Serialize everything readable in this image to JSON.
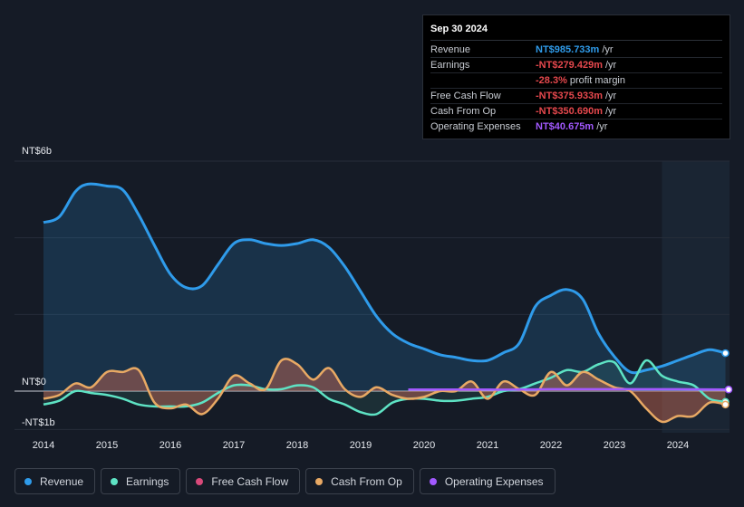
{
  "tooltip": {
    "date": "Sep 30 2024",
    "rows": [
      {
        "label": "Revenue",
        "value": "NT$985.733m",
        "unit": "/yr",
        "color": "#2f9bea"
      },
      {
        "label": "Earnings",
        "value": "-NT$279.429m",
        "unit": "/yr",
        "color": "#e5484d"
      },
      {
        "label": "",
        "value": "-28.3%",
        "unit": "profit margin",
        "color": "#e5484d"
      },
      {
        "label": "Free Cash Flow",
        "value": "-NT$375.933m",
        "unit": "/yr",
        "color": "#e5484d"
      },
      {
        "label": "Cash From Op",
        "value": "-NT$350.690m",
        "unit": "/yr",
        "color": "#e5484d"
      },
      {
        "label": "Operating Expenses",
        "value": "NT$40.675m",
        "unit": "/yr",
        "color": "#a259ff"
      }
    ]
  },
  "legend": [
    {
      "label": "Revenue",
      "color": "#2f9bea"
    },
    {
      "label": "Earnings",
      "color": "#5ee3c4"
    },
    {
      "label": "Free Cash Flow",
      "color": "#d9497a"
    },
    {
      "label": "Cash From Op",
      "color": "#e8a964"
    },
    {
      "label": "Operating Expenses",
      "color": "#a259ff"
    }
  ],
  "chart_data": {
    "type": "line",
    "title": "",
    "ylim": [
      -1,
      6
    ],
    "y_tick_labels": [
      "NT$6b",
      "NT$0",
      "-NT$1b"
    ],
    "x_tick_labels": [
      "2014",
      "2015",
      "2016",
      "2017",
      "2018",
      "2019",
      "2020",
      "2021",
      "2022",
      "2023",
      "2024"
    ],
    "x_domain": [
      2014,
      2024.8
    ],
    "highlight_from": 2023.75,
    "series": [
      {
        "name": "Revenue",
        "color": "#2f9bea",
        "x": [
          2014,
          2014.25,
          2014.5,
          2014.7,
          2015,
          2015.25,
          2015.5,
          2015.75,
          2016,
          2016.25,
          2016.5,
          2016.75,
          2017,
          2017.25,
          2017.5,
          2017.75,
          2018,
          2018.25,
          2018.5,
          2018.75,
          2019,
          2019.25,
          2019.5,
          2019.75,
          2020,
          2020.25,
          2020.5,
          2020.75,
          2021,
          2021.25,
          2021.5,
          2021.75,
          2022,
          2022.25,
          2022.5,
          2022.75,
          2023,
          2023.25,
          2023.5,
          2023.75,
          2024,
          2024.25,
          2024.5,
          2024.75
        ],
        "y": [
          4.4,
          4.55,
          5.2,
          5.4,
          5.35,
          5.25,
          4.6,
          3.8,
          3.05,
          2.7,
          2.75,
          3.3,
          3.85,
          3.95,
          3.85,
          3.8,
          3.85,
          3.95,
          3.75,
          3.25,
          2.6,
          1.95,
          1.5,
          1.25,
          1.1,
          0.95,
          0.88,
          0.8,
          0.8,
          1.0,
          1.25,
          2.2,
          2.5,
          2.65,
          2.4,
          1.5,
          0.9,
          0.5,
          0.55,
          0.65,
          0.8,
          0.95,
          1.08,
          0.99
        ]
      },
      {
        "name": "Earnings",
        "color": "#5ee3c4",
        "x": [
          2014,
          2014.25,
          2014.5,
          2014.75,
          2015,
          2015.25,
          2015.5,
          2015.75,
          2016,
          2016.25,
          2016.5,
          2016.75,
          2017,
          2017.25,
          2017.5,
          2017.75,
          2018,
          2018.25,
          2018.5,
          2018.75,
          2019,
          2019.25,
          2019.5,
          2019.75,
          2020,
          2020.25,
          2020.5,
          2020.75,
          2021,
          2021.25,
          2021.5,
          2021.75,
          2022,
          2022.25,
          2022.5,
          2022.75,
          2023,
          2023.25,
          2023.5,
          2023.75,
          2024,
          2024.25,
          2024.5,
          2024.75
        ],
        "y": [
          -0.35,
          -0.25,
          0,
          -0.05,
          -0.1,
          -0.2,
          -0.35,
          -0.4,
          -0.4,
          -0.4,
          -0.3,
          -0.05,
          0.15,
          0.15,
          0.05,
          0.05,
          0.15,
          0.1,
          -0.2,
          -0.35,
          -0.55,
          -0.6,
          -0.3,
          -0.2,
          -0.2,
          -0.25,
          -0.25,
          -0.2,
          -0.15,
          0.0,
          0.05,
          0.2,
          0.35,
          0.55,
          0.5,
          0.7,
          0.75,
          0.2,
          0.8,
          0.4,
          0.25,
          0.15,
          -0.2,
          -0.28
        ]
      },
      {
        "name": "Cash From Op",
        "color": "#e8a964",
        "x": [
          2014,
          2014.25,
          2014.5,
          2014.75,
          2015,
          2015.25,
          2015.5,
          2015.75,
          2016,
          2016.25,
          2016.5,
          2016.75,
          2017,
          2017.25,
          2017.5,
          2017.75,
          2018,
          2018.25,
          2018.5,
          2018.75,
          2019,
          2019.25,
          2019.5,
          2019.75,
          2020,
          2020.25,
          2020.5,
          2020.75,
          2021,
          2021.25,
          2021.5,
          2021.75,
          2022,
          2022.25,
          2022.5,
          2022.75,
          2023,
          2023.25,
          2023.5,
          2023.75,
          2024,
          2024.25,
          2024.5,
          2024.75
        ],
        "y": [
          -0.2,
          -0.1,
          0.2,
          0.1,
          0.5,
          0.5,
          0.55,
          -0.3,
          -0.45,
          -0.35,
          -0.6,
          -0.2,
          0.4,
          0.2,
          0.05,
          0.8,
          0.7,
          0.3,
          0.6,
          0.05,
          -0.15,
          0.1,
          -0.1,
          -0.2,
          -0.15,
          0.0,
          0.0,
          0.25,
          -0.2,
          0.25,
          0.05,
          -0.1,
          0.5,
          0.15,
          0.5,
          0.3,
          0.1,
          0.0,
          -0.45,
          -0.8,
          -0.65,
          -0.65,
          -0.3,
          -0.35
        ]
      },
      {
        "name": "Operating Expenses",
        "color": "#a259ff",
        "x": [
          2019.75,
          2020.5,
          2021,
          2021.5,
          2022,
          2022.5,
          2023,
          2023.5,
          2024,
          2024.5,
          2024.8
        ],
        "y": [
          0.04,
          0.04,
          0.04,
          0.04,
          0.05,
          0.05,
          0.05,
          0.05,
          0.05,
          0.045,
          0.041
        ]
      }
    ]
  }
}
